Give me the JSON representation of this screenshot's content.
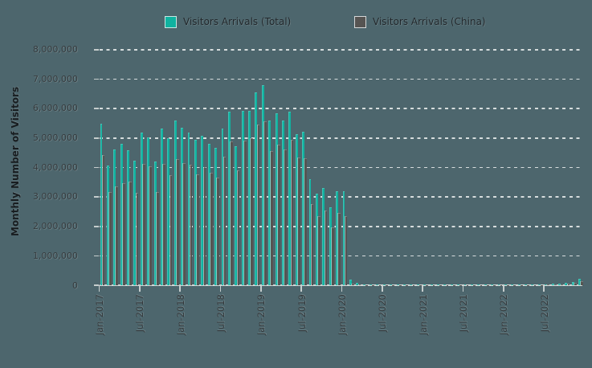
{
  "app": {
    "background_color": "#4d666d"
  },
  "legend": {
    "items": [
      {
        "label": "Visitors Arrivals (Total)",
        "color": "#10b2a0"
      },
      {
        "label": "Visitors Arrivals (China)",
        "color": "#565452"
      }
    ]
  },
  "chart_data": {
    "type": "bar",
    "title": "",
    "xlabel": "",
    "ylabel": "Monthly Number of Visitors",
    "ylim": [
      0,
      8000000
    ],
    "ytick_interval": 1000000,
    "grid": "dashed-horizontal",
    "legend_position": "top",
    "y_tick_labels": [
      "0",
      "1,000,000",
      "2,000,000",
      "3,000,000",
      "4,000,000",
      "5,000,000",
      "6,000,000",
      "7,000,000",
      "8,000,000"
    ],
    "x_tick_labels": [
      "Jan-2017",
      "Jul-2017",
      "Jan-2018",
      "Jul-2018",
      "Jan-2019",
      "Jul-2019",
      "Jan-2020",
      "Jul-2020",
      "Jan-2021",
      "Jul-2021",
      "Jan-2022",
      "Jul-2022"
    ],
    "months": [
      "Jan-2017",
      "Feb-2017",
      "Mar-2017",
      "Apr-2017",
      "May-2017",
      "Jun-2017",
      "Jul-2017",
      "Aug-2017",
      "Sep-2017",
      "Oct-2017",
      "Nov-2017",
      "Dec-2017",
      "Jan-2018",
      "Feb-2018",
      "Mar-2018",
      "Apr-2018",
      "May-2018",
      "Jun-2018",
      "Jul-2018",
      "Aug-2018",
      "Sep-2018",
      "Oct-2018",
      "Nov-2018",
      "Dec-2018",
      "Jan-2019",
      "Feb-2019",
      "Mar-2019",
      "Apr-2019",
      "May-2019",
      "Jun-2019",
      "Jul-2019",
      "Aug-2019",
      "Sep-2019",
      "Oct-2019",
      "Nov-2019",
      "Dec-2019",
      "Jan-2020",
      "Feb-2020",
      "Mar-2020",
      "Apr-2020",
      "May-2020",
      "Jun-2020",
      "Jul-2020",
      "Aug-2020",
      "Sep-2020",
      "Oct-2020",
      "Nov-2020",
      "Dec-2020",
      "Jan-2021",
      "Feb-2021",
      "Mar-2021",
      "Apr-2021",
      "May-2021",
      "Jun-2021",
      "Jul-2021",
      "Aug-2021",
      "Sep-2021",
      "Oct-2021",
      "Nov-2021",
      "Dec-2021",
      "Jan-2022",
      "Feb-2022",
      "Mar-2022",
      "Apr-2022",
      "May-2022",
      "Jun-2022",
      "Jul-2022",
      "Aug-2022",
      "Sep-2022",
      "Oct-2022",
      "Nov-2022",
      "Dec-2022"
    ],
    "series": [
      {
        "name": "Visitors Arrivals (Total)",
        "color": "#10b2a0",
        "values": [
          5474000,
          4075000,
          4605000,
          4790000,
          4590000,
          4233000,
          5169000,
          5030000,
          4190000,
          5331000,
          4992000,
          5600000,
          5342000,
          5182000,
          4942000,
          5060000,
          4813000,
          4656000,
          5323000,
          5891000,
          4725000,
          5931000,
          5923000,
          6552000,
          6791000,
          5595000,
          5849000,
          5580000,
          5902000,
          5139000,
          5203000,
          3591000,
          3103000,
          3312000,
          2646000,
          3193000,
          3204000,
          199000,
          82000,
          4100,
          8100,
          18300,
          26600,
          22100,
          9100,
          10500,
          5900,
          5700,
          4400,
          3400,
          5500,
          6400,
          7500,
          7800,
          8400,
          8600,
          9300,
          9300,
          10400,
          11000,
          4400,
          4100,
          8200,
          11100,
          15800,
          20900,
          31600,
          44000,
          56800,
          79900,
          117300,
          210500
        ]
      },
      {
        "name": "Visitors Arrivals (China)",
        "color": "#565452",
        "values": [
          4424000,
          3161000,
          3360000,
          3458000,
          3521000,
          3127000,
          4122000,
          4044000,
          3158000,
          4106000,
          3727000,
          4271000,
          4137000,
          4079000,
          3773000,
          4011000,
          3813000,
          3651000,
          4357000,
          4872000,
          3902000,
          4920000,
          4992000,
          5459000,
          5552000,
          4553000,
          4776000,
          4621000,
          4945000,
          4329000,
          4310000,
          2742000,
          2348000,
          2527000,
          1963000,
          2444000,
          2359000,
          54000,
          19000,
          2200,
          4600,
          9100,
          12800,
          9600,
          3500,
          4800,
          2700,
          2800,
          2500,
          1900,
          3300,
          3900,
          4500,
          4700,
          5000,
          5100,
          5500,
          5500,
          6100,
          6400,
          2400,
          2500,
          4900,
          6700,
          9500,
          12600,
          19200,
          26500,
          34100,
          48000,
          70400,
          140700
        ]
      }
    ]
  }
}
